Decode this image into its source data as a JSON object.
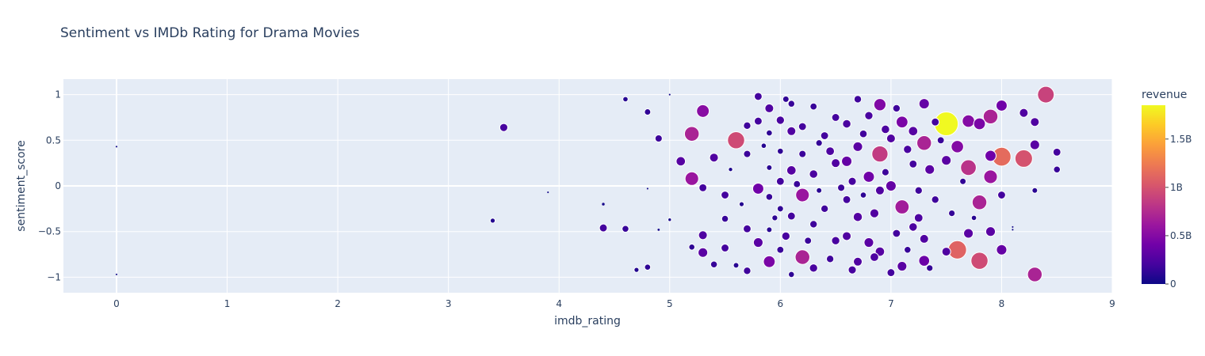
{
  "chart_data": {
    "type": "scatter",
    "title": "Sentiment vs IMDb Rating for Drama Movies",
    "xlabel": "imdb_rating",
    "ylabel": "sentiment_score",
    "xlim": [
      -0.48,
      9.0
    ],
    "ylim": [
      -1.17,
      1.17
    ],
    "xticks": [
      0,
      1,
      2,
      3,
      4,
      5,
      6,
      7,
      8,
      9
    ],
    "yticks": [
      -1,
      -0.5,
      0,
      0.5,
      1
    ],
    "ytick_labels": [
      "−1",
      "−0.5",
      "0",
      "0.5",
      "1"
    ],
    "grid": true,
    "colorbar": {
      "title": "revenue",
      "range": [
        0,
        1850000000
      ],
      "ticks": [
        0,
        500000000,
        1000000000,
        1500000000
      ],
      "tick_labels": [
        "0",
        "0.5B",
        "1B",
        "1.5B"
      ],
      "colors": [
        "#0d0887",
        "#46039f",
        "#7201a8",
        "#9c179e",
        "#bd3786",
        "#d8576b",
        "#ed7953",
        "#fb9f3a",
        "#fdca26",
        "#f0f921"
      ]
    },
    "colors": {
      "plot_bg": "#e5ecf6",
      "grid": "#ffffff",
      "text": "#2a3f5f",
      "point_outline": "#ffffff"
    },
    "points": [
      {
        "x": 0,
        "y": 0.43,
        "revenue": 0
      },
      {
        "x": 0,
        "y": -0.97,
        "revenue": 0
      },
      {
        "x": 3.4,
        "y": -0.38,
        "revenue": 80000000
      },
      {
        "x": 3.5,
        "y": 0.64,
        "revenue": 210000000
      },
      {
        "x": 3.9,
        "y": -0.07,
        "revenue": 5000000
      },
      {
        "x": 4.4,
        "y": -0.2,
        "revenue": 30000000
      },
      {
        "x": 4.4,
        "y": -0.46,
        "revenue": 200000000
      },
      {
        "x": 4.6,
        "y": 0.95,
        "revenue": 90000000
      },
      {
        "x": 4.6,
        "y": -0.47,
        "revenue": 150000000
      },
      {
        "x": 4.7,
        "y": -0.92,
        "revenue": 80000000
      },
      {
        "x": 4.8,
        "y": 0.81,
        "revenue": 130000000
      },
      {
        "x": 4.8,
        "y": -0.89,
        "revenue": 120000000
      },
      {
        "x": 4.8,
        "y": -0.03,
        "revenue": 5000000
      },
      {
        "x": 4.9,
        "y": 0.52,
        "revenue": 170000000
      },
      {
        "x": 4.9,
        "y": -0.48,
        "revenue": 20000000
      },
      {
        "x": 5.0,
        "y": 1.0,
        "revenue": 10000000
      },
      {
        "x": 5.0,
        "y": -0.37,
        "revenue": 40000000
      },
      {
        "x": 5.1,
        "y": 0.27,
        "revenue": 280000000
      },
      {
        "x": 5.2,
        "y": 0.57,
        "revenue": 700000000
      },
      {
        "x": 5.2,
        "y": 0.08,
        "revenue": 600000000
      },
      {
        "x": 5.2,
        "y": -0.67,
        "revenue": 120000000
      },
      {
        "x": 5.3,
        "y": 0.82,
        "revenue": 520000000
      },
      {
        "x": 5.3,
        "y": -0.02,
        "revenue": 200000000
      },
      {
        "x": 5.3,
        "y": -0.54,
        "revenue": 250000000
      },
      {
        "x": 5.3,
        "y": -0.73,
        "revenue": 300000000
      },
      {
        "x": 5.4,
        "y": 0.31,
        "revenue": 250000000
      },
      {
        "x": 5.4,
        "y": -0.86,
        "revenue": 150000000
      },
      {
        "x": 5.5,
        "y": -0.1,
        "revenue": 200000000
      },
      {
        "x": 5.5,
        "y": -0.36,
        "revenue": 150000000
      },
      {
        "x": 5.5,
        "y": -0.68,
        "revenue": 200000000
      },
      {
        "x": 5.6,
        "y": 0.5,
        "revenue": 950000000
      },
      {
        "x": 5.6,
        "y": -0.87,
        "revenue": 100000000
      },
      {
        "x": 5.7,
        "y": 0.66,
        "revenue": 180000000
      },
      {
        "x": 5.7,
        "y": 0.35,
        "revenue": 170000000
      },
      {
        "x": 5.7,
        "y": -0.47,
        "revenue": 200000000
      },
      {
        "x": 5.7,
        "y": -0.93,
        "revenue": 180000000
      },
      {
        "x": 5.8,
        "y": 0.98,
        "revenue": 200000000
      },
      {
        "x": 5.8,
        "y": 0.71,
        "revenue": 200000000
      },
      {
        "x": 5.8,
        "y": -0.03,
        "revenue": 400000000
      },
      {
        "x": 5.8,
        "y": -0.62,
        "revenue": 300000000
      },
      {
        "x": 5.9,
        "y": 0.85,
        "revenue": 250000000
      },
      {
        "x": 5.9,
        "y": 0.58,
        "revenue": 120000000
      },
      {
        "x": 5.9,
        "y": 0.2,
        "revenue": 100000000
      },
      {
        "x": 5.9,
        "y": -0.12,
        "revenue": 150000000
      },
      {
        "x": 5.9,
        "y": -0.48,
        "revenue": 100000000
      },
      {
        "x": 5.9,
        "y": -0.83,
        "revenue": 450000000
      },
      {
        "x": 6.0,
        "y": 0.72,
        "revenue": 220000000
      },
      {
        "x": 6.0,
        "y": 0.38,
        "revenue": 120000000
      },
      {
        "x": 6.0,
        "y": 0.05,
        "revenue": 200000000
      },
      {
        "x": 6.0,
        "y": -0.25,
        "revenue": 130000000
      },
      {
        "x": 6.0,
        "y": -0.7,
        "revenue": 160000000
      },
      {
        "x": 6.1,
        "y": 0.9,
        "revenue": 150000000
      },
      {
        "x": 6.1,
        "y": 0.6,
        "revenue": 250000000
      },
      {
        "x": 6.1,
        "y": 0.17,
        "revenue": 280000000
      },
      {
        "x": 6.1,
        "y": -0.33,
        "revenue": 200000000
      },
      {
        "x": 6.1,
        "y": -0.97,
        "revenue": 120000000
      },
      {
        "x": 6.2,
        "y": 0.65,
        "revenue": 200000000
      },
      {
        "x": 6.2,
        "y": 0.35,
        "revenue": 170000000
      },
      {
        "x": 6.2,
        "y": -0.1,
        "revenue": 600000000
      },
      {
        "x": 6.2,
        "y": -0.78,
        "revenue": 700000000
      },
      {
        "x": 6.3,
        "y": 0.87,
        "revenue": 160000000
      },
      {
        "x": 6.3,
        "y": 0.13,
        "revenue": 230000000
      },
      {
        "x": 6.3,
        "y": -0.42,
        "revenue": 180000000
      },
      {
        "x": 6.3,
        "y": -0.9,
        "revenue": 220000000
      },
      {
        "x": 6.4,
        "y": 0.55,
        "revenue": 200000000
      },
      {
        "x": 6.4,
        "y": -0.25,
        "revenue": 180000000
      },
      {
        "x": 6.5,
        "y": 0.75,
        "revenue": 200000000
      },
      {
        "x": 6.5,
        "y": 0.25,
        "revenue": 250000000
      },
      {
        "x": 6.5,
        "y": -0.6,
        "revenue": 220000000
      },
      {
        "x": 6.6,
        "y": 0.68,
        "revenue": 230000000
      },
      {
        "x": 6.6,
        "y": 0.27,
        "revenue": 350000000
      },
      {
        "x": 6.6,
        "y": -0.15,
        "revenue": 200000000
      },
      {
        "x": 6.6,
        "y": -0.55,
        "revenue": 250000000
      },
      {
        "x": 6.7,
        "y": 0.95,
        "revenue": 180000000
      },
      {
        "x": 6.7,
        "y": 0.43,
        "revenue": 300000000
      },
      {
        "x": 6.7,
        "y": -0.34,
        "revenue": 270000000
      },
      {
        "x": 6.7,
        "y": -0.83,
        "revenue": 250000000
      },
      {
        "x": 6.8,
        "y": 0.77,
        "revenue": 220000000
      },
      {
        "x": 6.8,
        "y": 0.1,
        "revenue": 400000000
      },
      {
        "x": 6.8,
        "y": -0.62,
        "revenue": 300000000
      },
      {
        "x": 6.9,
        "y": 0.89,
        "revenue": 480000000
      },
      {
        "x": 6.9,
        "y": 0.35,
        "revenue": 850000000
      },
      {
        "x": 6.9,
        "y": -0.05,
        "revenue": 250000000
      },
      {
        "x": 6.9,
        "y": -0.72,
        "revenue": 280000000
      },
      {
        "x": 7.0,
        "y": 0.52,
        "revenue": 250000000
      },
      {
        "x": 7.0,
        "y": 0.0,
        "revenue": 350000000
      },
      {
        "x": 7.0,
        "y": -0.95,
        "revenue": 200000000
      },
      {
        "x": 7.1,
        "y": 0.7,
        "revenue": 450000000
      },
      {
        "x": 7.1,
        "y": -0.23,
        "revenue": 650000000
      },
      {
        "x": 7.1,
        "y": -0.88,
        "revenue": 300000000
      },
      {
        "x": 7.2,
        "y": 0.6,
        "revenue": 280000000
      },
      {
        "x": 7.2,
        "y": 0.24,
        "revenue": 200000000
      },
      {
        "x": 7.2,
        "y": -0.45,
        "revenue": 230000000
      },
      {
        "x": 7.3,
        "y": 0.47,
        "revenue": 700000000
      },
      {
        "x": 7.3,
        "y": 0.9,
        "revenue": 350000000
      },
      {
        "x": 7.3,
        "y": -0.58,
        "revenue": 250000000
      },
      {
        "x": 7.3,
        "y": -0.82,
        "revenue": 380000000
      },
      {
        "x": 7.4,
        "y": 0.7,
        "revenue": 200000000
      },
      {
        "x": 7.4,
        "y": -0.15,
        "revenue": 180000000
      },
      {
        "x": 7.5,
        "y": 0.68,
        "revenue": 1850000000
      },
      {
        "x": 7.5,
        "y": 0.28,
        "revenue": 300000000
      },
      {
        "x": 7.5,
        "y": -0.72,
        "revenue": 250000000
      },
      {
        "x": 7.6,
        "y": -0.7,
        "revenue": 1100000000
      },
      {
        "x": 7.6,
        "y": 0.43,
        "revenue": 500000000
      },
      {
        "x": 7.7,
        "y": 0.71,
        "revenue": 500000000
      },
      {
        "x": 7.7,
        "y": -0.52,
        "revenue": 300000000
      },
      {
        "x": 7.7,
        "y": 0.2,
        "revenue": 800000000
      },
      {
        "x": 7.8,
        "y": -0.82,
        "revenue": 950000000
      },
      {
        "x": 7.8,
        "y": -0.18,
        "revenue": 700000000
      },
      {
        "x": 7.8,
        "y": 0.68,
        "revenue": 450000000
      },
      {
        "x": 7.9,
        "y": 0.33,
        "revenue": 400000000
      },
      {
        "x": 7.9,
        "y": 0.1,
        "revenue": 600000000
      },
      {
        "x": 7.9,
        "y": -0.5,
        "revenue": 300000000
      },
      {
        "x": 7.9,
        "y": 0.76,
        "revenue": 700000000
      },
      {
        "x": 8.0,
        "y": 0.32,
        "revenue": 1150000000
      },
      {
        "x": 8.0,
        "y": -0.1,
        "revenue": 200000000
      },
      {
        "x": 8.0,
        "y": -0.7,
        "revenue": 350000000
      },
      {
        "x": 8.0,
        "y": 0.88,
        "revenue": 400000000
      },
      {
        "x": 8.2,
        "y": 0.3,
        "revenue": 1000000000
      },
      {
        "x": 8.2,
        "y": 0.8,
        "revenue": 250000000
      },
      {
        "x": 8.3,
        "y": 0.7,
        "revenue": 250000000
      },
      {
        "x": 8.3,
        "y": -0.97,
        "revenue": 700000000
      },
      {
        "x": 8.3,
        "y": -0.05,
        "revenue": 100000000
      },
      {
        "x": 8.3,
        "y": 0.45,
        "revenue": 300000000
      },
      {
        "x": 8.4,
        "y": 1.0,
        "revenue": 900000000
      },
      {
        "x": 8.5,
        "y": 0.37,
        "revenue": 200000000
      },
      {
        "x": 8.5,
        "y": 0.18,
        "revenue": 150000000
      },
      {
        "x": 6.05,
        "y": -0.55,
        "revenue": 220000000
      },
      {
        "x": 6.15,
        "y": 0.02,
        "revenue": 160000000
      },
      {
        "x": 6.35,
        "y": 0.47,
        "revenue": 140000000
      },
      {
        "x": 6.45,
        "y": -0.8,
        "revenue": 180000000
      },
      {
        "x": 6.55,
        "y": -0.02,
        "revenue": 170000000
      },
      {
        "x": 6.65,
        "y": -0.92,
        "revenue": 210000000
      },
      {
        "x": 6.75,
        "y": 0.57,
        "revenue": 190000000
      },
      {
        "x": 6.85,
        "y": -0.3,
        "revenue": 260000000
      },
      {
        "x": 6.95,
        "y": 0.62,
        "revenue": 230000000
      },
      {
        "x": 7.05,
        "y": -0.52,
        "revenue": 200000000
      },
      {
        "x": 7.15,
        "y": 0.4,
        "revenue": 220000000
      },
      {
        "x": 7.25,
        "y": -0.05,
        "revenue": 180000000
      },
      {
        "x": 7.35,
        "y": 0.18,
        "revenue": 300000000
      },
      {
        "x": 6.25,
        "y": -0.6,
        "revenue": 160000000
      },
      {
        "x": 6.45,
        "y": 0.38,
        "revenue": 240000000
      },
      {
        "x": 6.65,
        "y": 0.05,
        "revenue": 210000000
      },
      {
        "x": 6.85,
        "y": -0.78,
        "revenue": 240000000
      },
      {
        "x": 7.05,
        "y": 0.85,
        "revenue": 180000000
      },
      {
        "x": 7.25,
        "y": -0.35,
        "revenue": 240000000
      },
      {
        "x": 5.85,
        "y": 0.44,
        "revenue": 90000000
      },
      {
        "x": 5.95,
        "y": -0.35,
        "revenue": 110000000
      },
      {
        "x": 6.05,
        "y": 0.95,
        "revenue": 130000000
      },
      {
        "x": 6.75,
        "y": -0.1,
        "revenue": 120000000
      },
      {
        "x": 7.15,
        "y": -0.7,
        "revenue": 150000000
      },
      {
        "x": 7.45,
        "y": 0.5,
        "revenue": 160000000
      },
      {
        "x": 7.55,
        "y": -0.3,
        "revenue": 140000000
      },
      {
        "x": 7.65,
        "y": 0.05,
        "revenue": 130000000
      },
      {
        "x": 5.65,
        "y": -0.2,
        "revenue": 80000000
      },
      {
        "x": 5.55,
        "y": 0.18,
        "revenue": 60000000
      },
      {
        "x": 6.35,
        "y": -0.05,
        "revenue": 100000000
      },
      {
        "x": 6.95,
        "y": 0.15,
        "revenue": 170000000
      },
      {
        "x": 7.35,
        "y": -0.9,
        "revenue": 140000000
      },
      {
        "x": 7.75,
        "y": -0.35,
        "revenue": 90000000
      },
      {
        "x": 8.1,
        "y": -0.45,
        "revenue": 10000000
      },
      {
        "x": 8.1,
        "y": -0.48,
        "revenue": 5000000
      }
    ]
  }
}
